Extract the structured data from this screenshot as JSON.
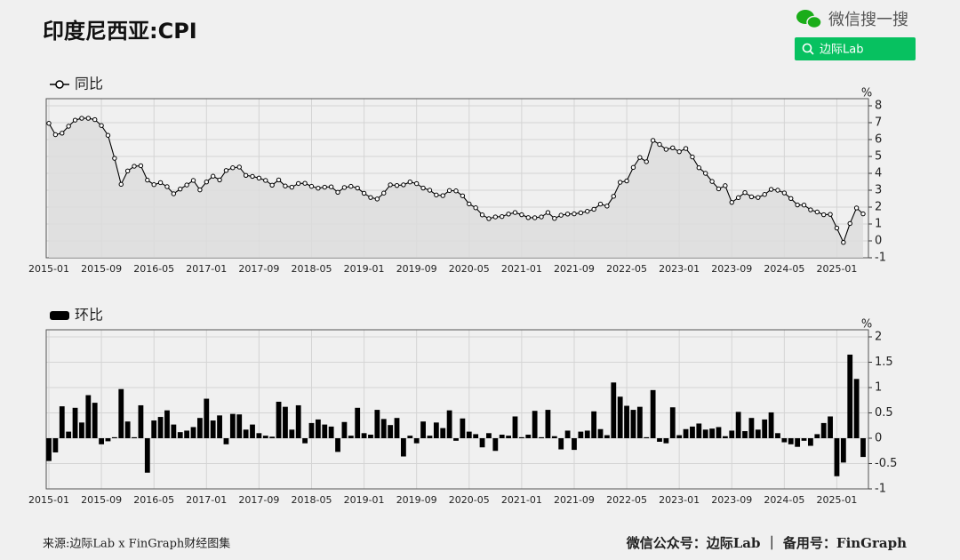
{
  "header": {
    "title": "印度尼西亚:CPI",
    "search_brand": "微信搜一搜",
    "search_text": "边际Lab"
  },
  "footer": {
    "source": "来源:边际Lab x FinGraph财经图集",
    "account": "微信公众号：边际Lab ｜ 备用号：FinGraph"
  },
  "chart_data": [
    {
      "type": "line",
      "y_label": "%",
      "ylim": [
        -1,
        8
      ],
      "yticks": [
        -1,
        0,
        1,
        2,
        3,
        4,
        5,
        6,
        7,
        8
      ],
      "grid": true,
      "categories": [
        "2015-01",
        null,
        null,
        null,
        null,
        null,
        null,
        null,
        "2015-09",
        null,
        null,
        null,
        null,
        null,
        null,
        null,
        "2016-05",
        null,
        null,
        null,
        null,
        null,
        null,
        null,
        "2017-01",
        null,
        null,
        null,
        null,
        null,
        null,
        null,
        "2017-09",
        null,
        null,
        null,
        null,
        null,
        null,
        null,
        "2018-05",
        null,
        null,
        null,
        null,
        null,
        null,
        null,
        "2019-01",
        null,
        null,
        null,
        null,
        null,
        null,
        null,
        "2019-09",
        null,
        null,
        null,
        null,
        null,
        null,
        null,
        "2020-05",
        null,
        null,
        null,
        null,
        null,
        null,
        null,
        "2021-01",
        null,
        null,
        null,
        null,
        null,
        null,
        null,
        "2021-09",
        null,
        null,
        null,
        null,
        null,
        null,
        null,
        "2022-05",
        null,
        null,
        null,
        null,
        null,
        null,
        null,
        "2023-01",
        null,
        null,
        null,
        null,
        null,
        null,
        null,
        "2023-09",
        null,
        null,
        null,
        null,
        null,
        null,
        null,
        "2024-05",
        null,
        null,
        null,
        null,
        null,
        null,
        null,
        "2025-01",
        null,
        null,
        null,
        null
      ],
      "series": [
        {
          "name": "同比",
          "color": "#000000",
          "values": [
            6.96,
            6.29,
            6.38,
            6.79,
            7.15,
            7.26,
            7.26,
            7.18,
            6.83,
            6.25,
            4.89,
            3.35,
            4.14,
            4.42,
            4.45,
            3.6,
            3.33,
            3.45,
            3.21,
            2.79,
            3.07,
            3.31,
            3.58,
            3.02,
            3.49,
            3.83,
            3.61,
            4.17,
            4.33,
            4.37,
            3.88,
            3.82,
            3.72,
            3.58,
            3.3,
            3.61,
            3.25,
            3.18,
            3.4,
            3.41,
            3.23,
            3.12,
            3.18,
            3.2,
            2.88,
            3.16,
            3.23,
            3.13,
            2.82,
            2.57,
            2.48,
            2.83,
            3.32,
            3.28,
            3.32,
            3.49,
            3.39,
            3.13,
            3.0,
            2.72,
            2.68,
            2.98,
            2.96,
            2.67,
            2.19,
            1.96,
            1.54,
            1.32,
            1.42,
            1.44,
            1.59,
            1.68,
            1.55,
            1.38,
            1.37,
            1.42,
            1.68,
            1.33,
            1.52,
            1.59,
            1.6,
            1.66,
            1.75,
            1.87,
            2.18,
            2.06,
            2.64,
            3.47,
            3.55,
            4.35,
            4.94,
            4.69,
            5.95,
            5.71,
            5.42,
            5.51,
            5.28,
            5.47,
            4.97,
            4.33,
            4.0,
            3.52,
            3.08,
            3.27,
            2.28,
            2.56,
            2.86,
            2.61,
            2.57,
            2.75,
            3.05,
            3.0,
            2.84,
            2.51,
            2.13,
            2.12,
            1.84,
            1.71,
            1.55,
            1.57,
            0.76,
            -0.09,
            1.03,
            1.95,
            1.6
          ]
        }
      ]
    },
    {
      "type": "bar",
      "y_label": "%",
      "ylim": [
        -1,
        2
      ],
      "yticks": [
        -1,
        -0.5,
        0,
        0.5,
        1,
        1.5,
        2
      ],
      "grid": true,
      "categories": [
        "2015-01",
        null,
        null,
        null,
        null,
        null,
        null,
        null,
        "2015-09",
        null,
        null,
        null,
        null,
        null,
        null,
        null,
        "2016-05",
        null,
        null,
        null,
        null,
        null,
        null,
        null,
        "2017-01",
        null,
        null,
        null,
        null,
        null,
        null,
        null,
        "2017-09",
        null,
        null,
        null,
        null,
        null,
        null,
        null,
        "2018-05",
        null,
        null,
        null,
        null,
        null,
        null,
        null,
        "2019-01",
        null,
        null,
        null,
        null,
        null,
        null,
        null,
        "2019-09",
        null,
        null,
        null,
        null,
        null,
        null,
        null,
        "2020-05",
        null,
        null,
        null,
        null,
        null,
        null,
        null,
        "2021-01",
        null,
        null,
        null,
        null,
        null,
        null,
        null,
        "2021-09",
        null,
        null,
        null,
        null,
        null,
        null,
        null,
        "2022-05",
        null,
        null,
        null,
        null,
        null,
        null,
        null,
        "2023-01",
        null,
        null,
        null,
        null,
        null,
        null,
        null,
        "2023-09",
        null,
        null,
        null,
        null,
        null,
        null,
        null,
        "2024-05",
        null,
        null,
        null,
        null,
        null,
        null,
        null,
        "2025-01",
        null,
        null,
        null,
        null
      ],
      "series": [
        {
          "name": "环比",
          "color": "#000000",
          "values": [
            -0.45,
            -0.28,
            0.63,
            0.13,
            0.6,
            0.31,
            0.85,
            0.7,
            -0.12,
            -0.06,
            0.02,
            0.97,
            0.33,
            0.02,
            0.65,
            -0.68,
            0.35,
            0.42,
            0.55,
            0.27,
            0.12,
            0.15,
            0.22,
            0.4,
            0.78,
            0.35,
            0.45,
            -0.12,
            0.48,
            0.47,
            0.17,
            0.27,
            0.1,
            0.05,
            0.03,
            0.72,
            0.62,
            0.17,
            0.65,
            -0.1,
            0.3,
            0.37,
            0.27,
            0.23,
            -0.27,
            0.32,
            0.05,
            0.6,
            0.1,
            0.07,
            0.56,
            0.38,
            0.26,
            0.4,
            -0.36,
            0.05,
            -0.1,
            0.33,
            0.05,
            0.31,
            0.2,
            0.55,
            -0.05,
            0.39,
            0.13,
            0.08,
            -0.18,
            0.1,
            -0.25,
            0.07,
            0.05,
            0.43,
            0.02,
            0.07,
            0.54,
            0.02,
            0.56,
            0.04,
            -0.22,
            0.15,
            -0.23,
            0.13,
            0.15,
            0.53,
            0.18,
            0.06,
            1.1,
            0.82,
            0.64,
            0.56,
            0.62,
            0.02,
            0.95,
            -0.07,
            -0.1,
            0.61,
            0.06,
            0.18,
            0.23,
            0.29,
            0.17,
            0.19,
            0.22,
            0.04,
            0.15,
            0.52,
            0.14,
            0.4,
            0.17,
            0.37,
            0.51,
            0.1,
            -0.08,
            -0.12,
            -0.17,
            -0.05,
            -0.15,
            0.08,
            0.3,
            0.43,
            -0.75,
            -0.48,
            1.65,
            1.17,
            -0.37
          ]
        }
      ]
    }
  ]
}
